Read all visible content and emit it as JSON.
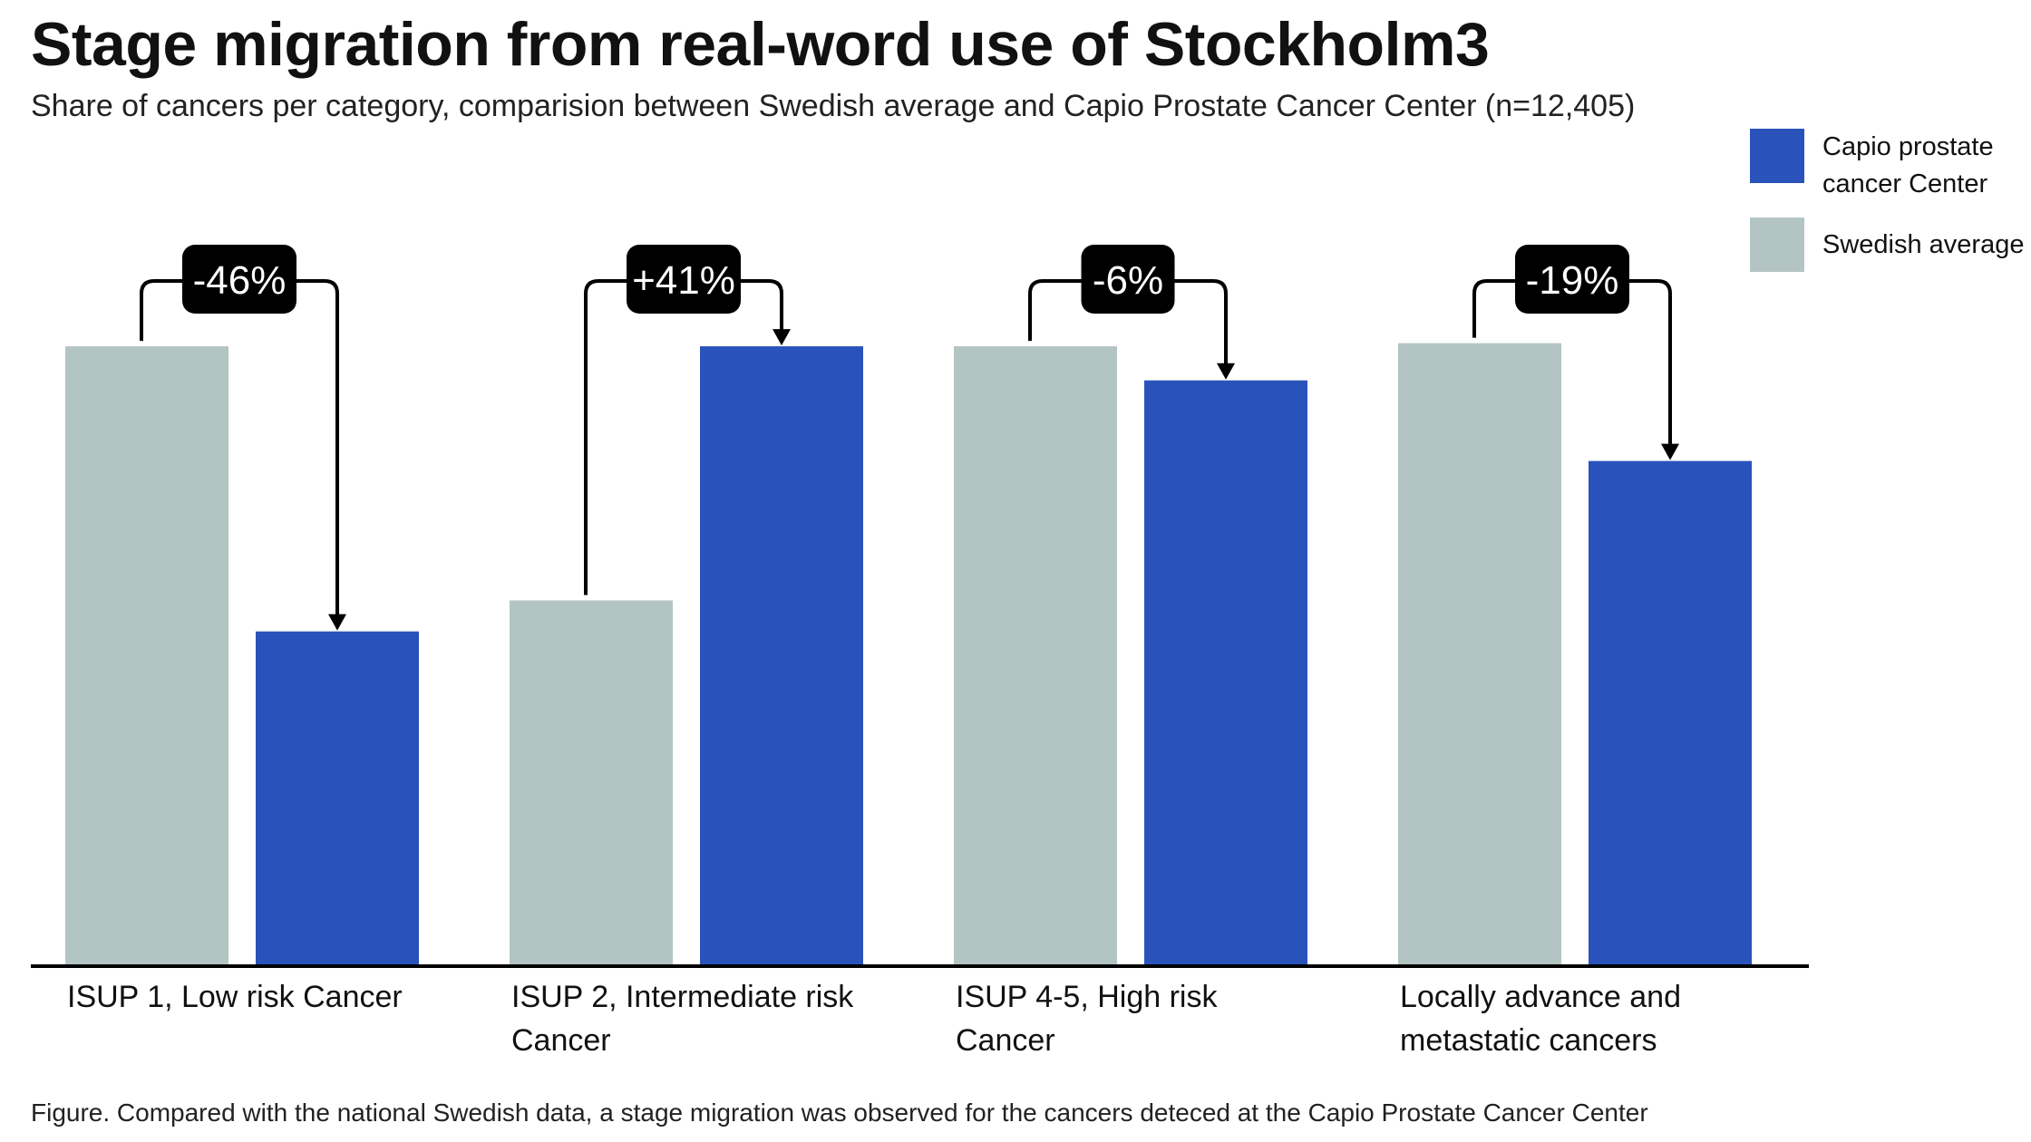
{
  "title": "Stage migration from real-word use of Stockholm3",
  "subtitle": "Share of cancers per category, comparision between Swedish average and Capio Prostate Cancer Center (n=12,405)",
  "caption": "Figure. Compared with the national Swedish data, a stage migration was observed for the cancers deteced at the Capio Prostate Cancer Center",
  "legend": {
    "capio": "Capio prostate cancer Center",
    "swedish": "Swedish average"
  },
  "colors": {
    "swedish": "#b3c5c3",
    "capio": "#2953bb",
    "axis": "#000000",
    "badge": "#000000",
    "badge_text": "#ffffff"
  },
  "chart_data": {
    "type": "bar",
    "categories": [
      [
        "ISUP 1, Low risk Cancer"
      ],
      [
        "ISUP 2, Intermediate risk",
        "Cancer"
      ],
      [
        "ISUP 4-5, High risk",
        "Cancer"
      ],
      [
        "Locally advance and",
        "metastatic cancers"
      ]
    ],
    "series": [
      {
        "name": "Swedish average",
        "values": [
          100,
          59,
          100,
          100.5
        ]
      },
      {
        "name": "Capio prostate cancer Center",
        "values": [
          54,
          100,
          94.5,
          81.5
        ]
      }
    ],
    "changes": [
      "-46%",
      "+41%",
      "-6%",
      "-19%"
    ],
    "ylim": [
      0,
      112
    ],
    "grid": false,
    "legend_position": "top-right"
  }
}
